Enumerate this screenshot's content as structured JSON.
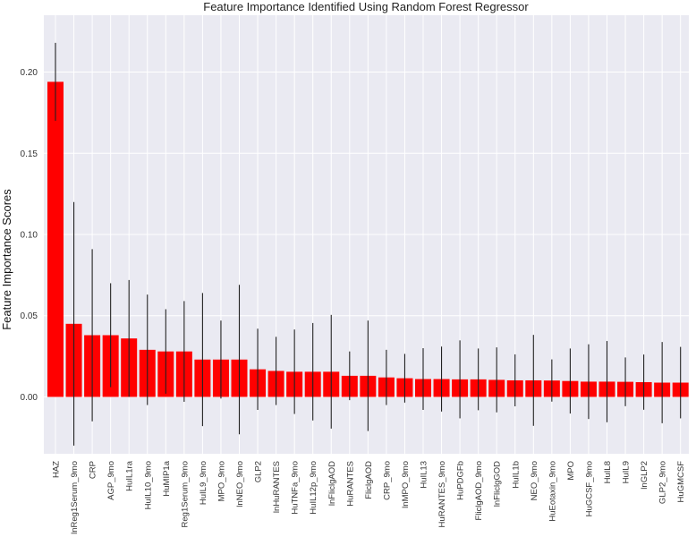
{
  "chart_data": {
    "type": "bar",
    "title": "Feature Importance Identified Using Random Forest Regressor",
    "xlabel": "",
    "ylabel": "Feature Importance Scores",
    "ylim": [
      -0.035,
      0.235
    ],
    "yticks": [
      0.0,
      0.05,
      0.1,
      0.15,
      0.2
    ],
    "ytick_labels": [
      "0.00",
      "0.05",
      "0.10",
      "0.15",
      "0.20"
    ],
    "grid": true,
    "bar_color": "#ff0000",
    "error_color": "#222222",
    "background": "#eaeaf2",
    "categories": [
      "HAZ",
      "lnReg1Serum_9mo",
      "CRP",
      "AGP_9mo",
      "HuIL1ra",
      "HuIL10_9mo",
      "HuMIP1a",
      "Reg1Serum_9mo",
      "HuIL9_9mo",
      "MPO_9mo",
      "lnNEO_9mo",
      "GLP2",
      "lnHuRANTES",
      "HuTNFa_9mo",
      "HuIL12p_9mo",
      "lnFliclgAOD",
      "HuRANTES",
      "FliclgAOD",
      "CRP_9mo",
      "lnMPO_9mo",
      "HuIL13",
      "HuRANTES_9mo",
      "HuPDGFb",
      "FliclgAOD_9mo",
      "lnFliclgGOD",
      "HuIL1b",
      "NEO_9mo",
      "HuEotaxin_9mo",
      "MPO",
      "HuGCSF_9mo",
      "HuIL8",
      "HuIL9",
      "lnGLP2",
      "GLP2_9mo",
      "HuGMCSF"
    ],
    "values": [
      0.194,
      0.045,
      0.038,
      0.038,
      0.036,
      0.029,
      0.028,
      0.028,
      0.023,
      0.023,
      0.023,
      0.017,
      0.016,
      0.0155,
      0.0155,
      0.0155,
      0.013,
      0.013,
      0.012,
      0.0115,
      0.011,
      0.011,
      0.0108,
      0.0108,
      0.0105,
      0.0102,
      0.0102,
      0.0101,
      0.0098,
      0.0094,
      0.0094,
      0.0093,
      0.0091,
      0.0088,
      0.0088
    ],
    "error": [
      0.024,
      0.075,
      0.053,
      0.032,
      0.036,
      0.034,
      0.026,
      0.031,
      0.041,
      0.024,
      0.046,
      0.025,
      0.021,
      0.026,
      0.03,
      0.035,
      0.015,
      0.034,
      0.017,
      0.015,
      0.019,
      0.02,
      0.024,
      0.019,
      0.02,
      0.016,
      0.028,
      0.013,
      0.02,
      0.023,
      0.025,
      0.015,
      0.017,
      0.025,
      0.022
    ]
  }
}
